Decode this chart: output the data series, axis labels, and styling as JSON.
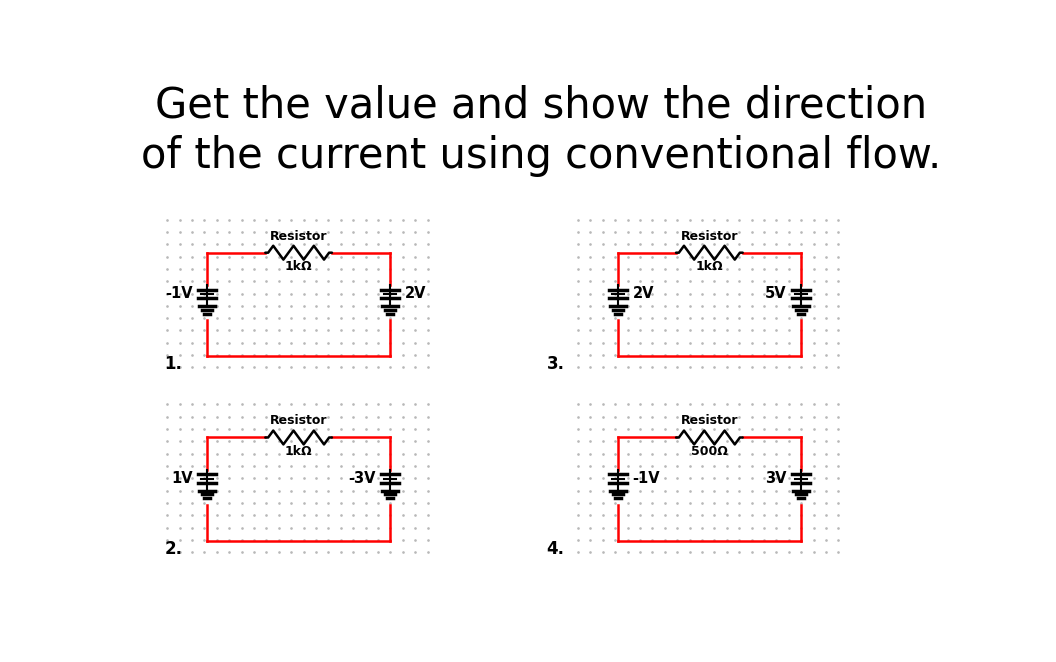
{
  "title_line1": "Get the value and show the direction",
  "title_line2": "of the current using conventional flow.",
  "title_fontsize": 30,
  "background_color": "#ffffff",
  "dotted_bg_color": "#b8b8b8",
  "wire_color": "red",
  "component_color": "black",
  "circuits": [
    {
      "number": "1.",
      "left_voltage": "-1V",
      "right_voltage": "2V",
      "resistor_label": "1kΩ",
      "resistor_title": "Resistor",
      "left_label_side": "left",
      "right_label_side": "right"
    },
    {
      "number": "2.",
      "left_voltage": "1V",
      "right_voltage": "-3V",
      "resistor_label": "1kΩ",
      "resistor_title": "Resistor",
      "left_label_side": "left",
      "right_label_side": "left"
    },
    {
      "number": "3.",
      "left_voltage": "2V",
      "right_voltage": "5V",
      "resistor_label": "1kΩ",
      "resistor_title": "Resistor",
      "left_label_side": "right",
      "right_label_side": "left"
    },
    {
      "number": "4.",
      "left_voltage": "-1V",
      "right_voltage": "3V",
      "resistor_label": "500Ω",
      "resistor_title": "Resistor",
      "left_label_side": "right",
      "right_label_side": "left"
    }
  ]
}
